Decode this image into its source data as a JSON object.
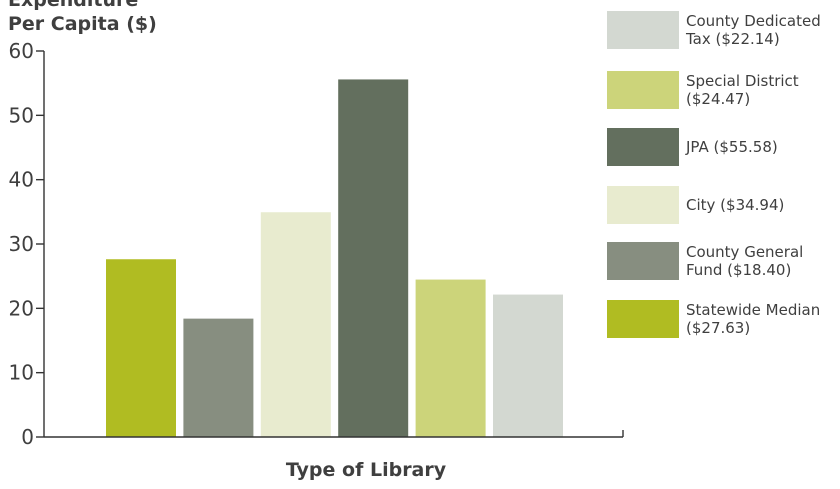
{
  "chart_data": {
    "type": "bar",
    "ylabel": [
      "Expenditure",
      "Per Capita ($)"
    ],
    "xlabel": "Type of Library",
    "ylim": [
      0,
      60
    ],
    "yticks": [
      0,
      10,
      20,
      30,
      40,
      50,
      60
    ],
    "grid": false,
    "legend_position": "right",
    "series": [
      {
        "name": "Statewide Median ($27.63)",
        "value": 27.63,
        "color": "#b0bc22"
      },
      {
        "name": "County General Fund ($18.40)",
        "value": 18.4,
        "color": "#878e80"
      },
      {
        "name": "City ($34.94)",
        "value": 34.94,
        "color": "#e8ebcf"
      },
      {
        "name": "JPA ($55.58)",
        "value": 55.58,
        "color": "#636f5e"
      },
      {
        "name": "Special District ($24.47)",
        "value": 24.47,
        "color": "#ccd47a"
      },
      {
        "name": "County Dedicated Tax ($22.14)",
        "value": 22.14,
        "color": "#d3d8d1"
      }
    ],
    "legend": [
      {
        "lines": [
          "County Dedicated",
          "Tax ($22.14)"
        ],
        "color": "#d3d8d1"
      },
      {
        "lines": [
          "Special District",
          "($24.47)"
        ],
        "color": "#ccd47a"
      },
      {
        "lines": [
          "JPA ($55.58)"
        ],
        "color": "#636f5e"
      },
      {
        "lines": [
          "City ($34.94)"
        ],
        "color": "#e8ebcf"
      },
      {
        "lines": [
          "County General",
          "Fund ($18.40)"
        ],
        "color": "#878e80"
      },
      {
        "lines": [
          "Statewide Median",
          "($27.63)"
        ],
        "color": "#b0bc22"
      }
    ]
  }
}
